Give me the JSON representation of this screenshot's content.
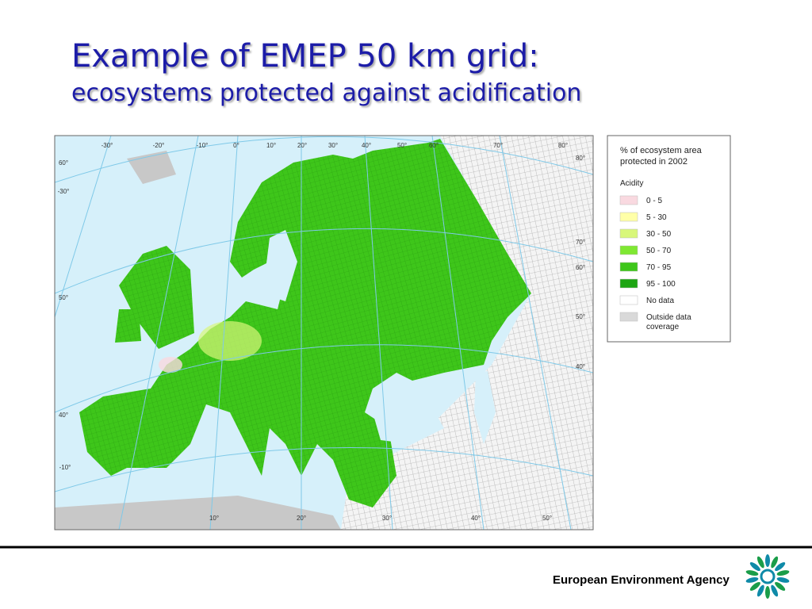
{
  "header": {
    "title": "Example of EMEP 50 km grid:",
    "subtitle": "ecosystems protected against acidification"
  },
  "map": {
    "graticule_labels": [
      "-30°",
      "-20°",
      "-10°",
      "0°",
      "10°",
      "20°",
      "30°",
      "40°",
      "50°",
      "60°",
      "70°",
      "80°",
      "60°",
      "-30°",
      "50°",
      "40°",
      "-10°",
      "80°",
      "70°",
      "60°",
      "50°",
      "40°",
      "10°",
      "20°",
      "30°",
      "40°",
      "50°"
    ]
  },
  "legend": {
    "title": "% of ecosystem area protected in 2002",
    "subtitle": "Acidity",
    "items": [
      {
        "label": "0 - 5",
        "color": "#f9d9e0"
      },
      {
        "label": "5 - 30",
        "color": "#ffffa8"
      },
      {
        "label": "30 - 50",
        "color": "#d8f77a"
      },
      {
        "label": "50 - 70",
        "color": "#7fe832"
      },
      {
        "label": "70 - 95",
        "color": "#3ec61a"
      },
      {
        "label": "95 - 100",
        "color": "#1da512"
      },
      {
        "label": "No data",
        "color": "#ffffff"
      },
      {
        "label": "Outside data coverage",
        "color": "#d9d9d9"
      }
    ]
  },
  "footer": {
    "agency": "European Environment Agency"
  }
}
